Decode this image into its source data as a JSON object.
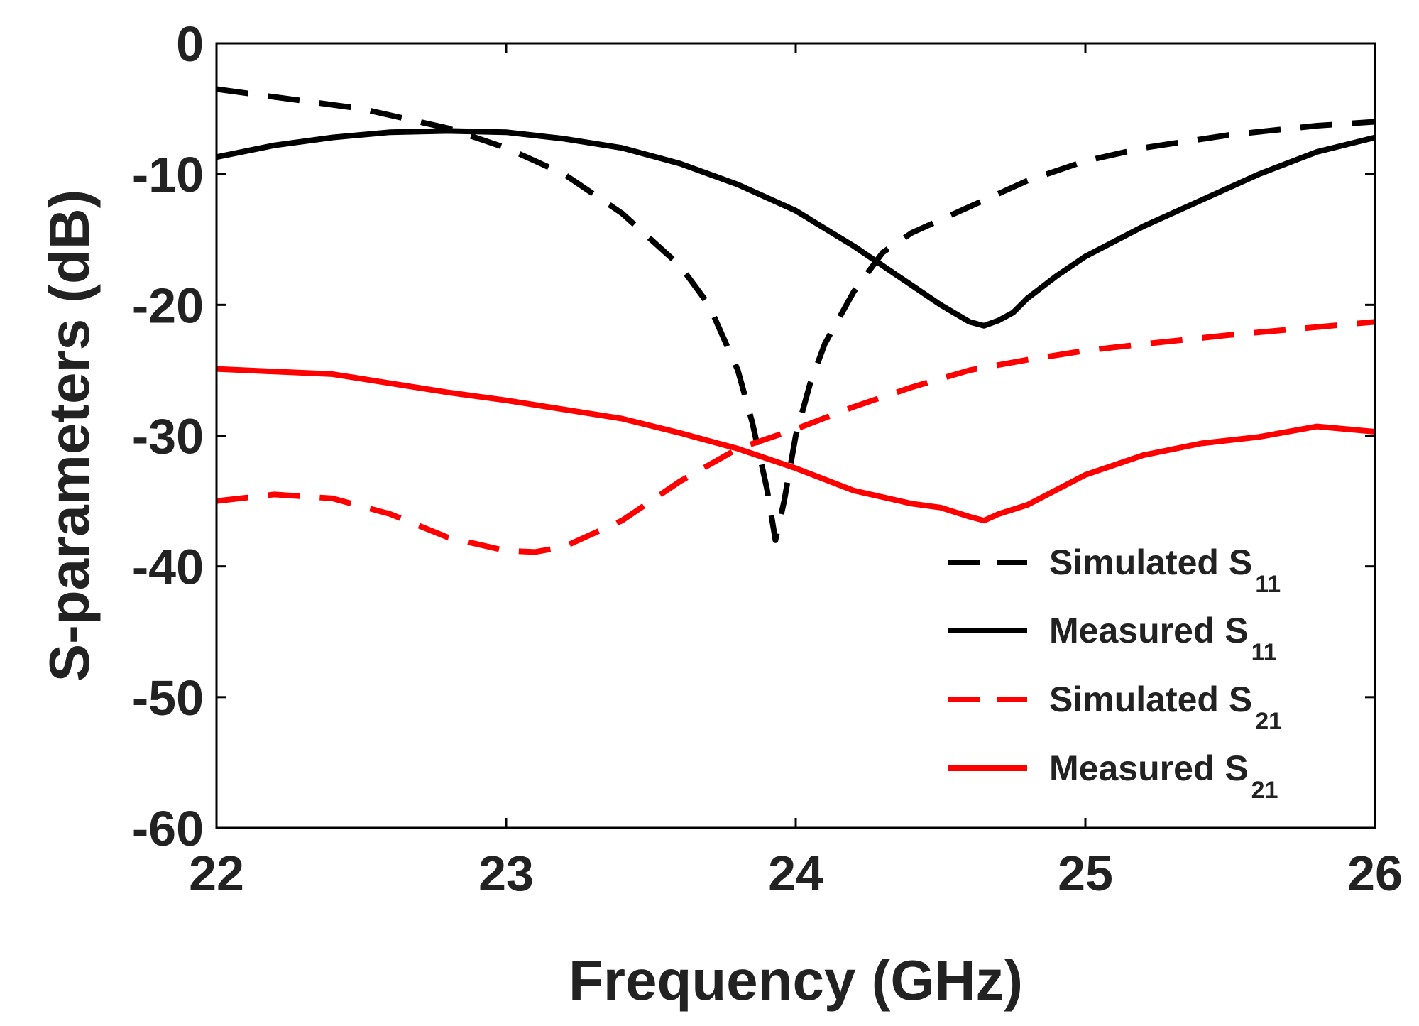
{
  "chart_data": {
    "type": "line",
    "title": "",
    "xlabel": "Frequency (GHz)",
    "ylabel": "S-parameters (dB)",
    "xlim": [
      22,
      26
    ],
    "ylim": [
      -60,
      0
    ],
    "xticks": [
      "22",
      "23",
      "24",
      "25",
      "26"
    ],
    "yticks": [
      "0",
      "-10",
      "-20",
      "-30",
      "-40",
      "-50",
      "-60"
    ],
    "grid": false,
    "legend_position": "bottom-right",
    "series": [
      {
        "name": "Simulated S11",
        "label": "Simulated S",
        "subscript": "11",
        "color": "#000000",
        "dash": "dashed",
        "x": [
          22.0,
          22.5,
          22.8,
          23.0,
          23.2,
          23.4,
          23.6,
          23.7,
          23.8,
          23.85,
          23.9,
          23.93,
          23.96,
          24.0,
          24.05,
          24.1,
          24.2,
          24.3,
          24.4,
          24.6,
          24.8,
          25.0,
          25.2,
          25.5,
          25.8,
          26.0
        ],
        "y": [
          -3.5,
          -5.0,
          -6.5,
          -8.0,
          -10.0,
          -13.0,
          -17.0,
          -20.0,
          -25.0,
          -29.0,
          -34.0,
          -38.0,
          -35.0,
          -30.0,
          -26.0,
          -23.0,
          -19.0,
          -16.0,
          -14.5,
          -12.5,
          -10.5,
          -9.0,
          -8.0,
          -7.0,
          -6.3,
          -6.0
        ]
      },
      {
        "name": "Measured S11",
        "label": "Measured S",
        "subscript": "11",
        "color": "#000000",
        "dash": "solid",
        "x": [
          22.0,
          22.2,
          22.4,
          22.6,
          22.8,
          23.0,
          23.2,
          23.4,
          23.6,
          23.8,
          24.0,
          24.2,
          24.4,
          24.5,
          24.6,
          24.65,
          24.7,
          24.75,
          24.8,
          24.9,
          25.0,
          25.2,
          25.4,
          25.6,
          25.8,
          26.0
        ],
        "y": [
          -8.7,
          -7.8,
          -7.2,
          -6.8,
          -6.7,
          -6.8,
          -7.3,
          -8.0,
          -9.2,
          -10.8,
          -12.8,
          -15.5,
          -18.5,
          -20.0,
          -21.3,
          -21.6,
          -21.2,
          -20.6,
          -19.5,
          -17.8,
          -16.3,
          -14.0,
          -12.0,
          -10.0,
          -8.3,
          -7.2
        ]
      },
      {
        "name": "Simulated S21",
        "label": "Simulated S",
        "subscript": "21",
        "color": "#ff0000",
        "dash": "dashed",
        "x": [
          22.0,
          22.2,
          22.4,
          22.6,
          22.8,
          23.0,
          23.1,
          23.2,
          23.4,
          23.6,
          23.8,
          24.0,
          24.2,
          24.4,
          24.6,
          24.8,
          25.0,
          25.2,
          25.5,
          25.8,
          26.0
        ],
        "y": [
          -35.0,
          -34.5,
          -34.8,
          -36.0,
          -37.8,
          -38.8,
          -38.9,
          -38.5,
          -36.5,
          -33.5,
          -31.0,
          -29.5,
          -27.8,
          -26.3,
          -25.0,
          -24.2,
          -23.5,
          -23.0,
          -22.3,
          -21.7,
          -21.3
        ]
      },
      {
        "name": "Measured S21",
        "label": "Measured S",
        "subscript": "21",
        "color": "#ff0000",
        "dash": "solid",
        "x": [
          22.0,
          22.2,
          22.4,
          22.6,
          22.8,
          23.0,
          23.2,
          23.4,
          23.6,
          23.8,
          24.0,
          24.2,
          24.4,
          24.5,
          24.6,
          24.65,
          24.7,
          24.8,
          25.0,
          25.2,
          25.4,
          25.6,
          25.8,
          26.0
        ],
        "y": [
          -24.9,
          -25.1,
          -25.3,
          -26.0,
          -26.7,
          -27.3,
          -28.0,
          -28.7,
          -29.8,
          -31.0,
          -32.5,
          -34.2,
          -35.2,
          -35.5,
          -36.2,
          -36.5,
          -36.0,
          -35.3,
          -33.0,
          -31.5,
          -30.6,
          -30.1,
          -29.3,
          -29.7
        ]
      }
    ]
  }
}
